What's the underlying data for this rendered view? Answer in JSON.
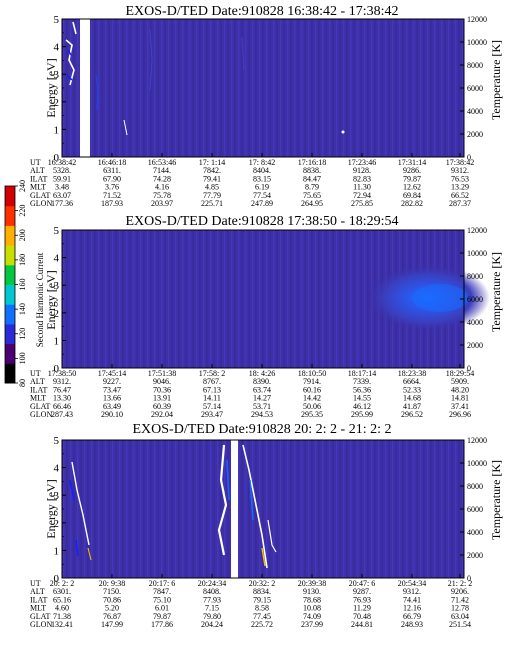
{
  "chart_data": [
    {
      "type": "heatmap",
      "title": "EXOS-D/TED   Date:910828   16:38:42 - 17:38:42",
      "ylabel": "Energy [eV]",
      "ylim": [
        0,
        5
      ],
      "yticks": [
        "0",
        "1",
        "2",
        "3",
        "4",
        "5"
      ],
      "y2label": "Temperature [K]",
      "y2lim": [
        0,
        12000
      ],
      "y2ticks": [
        "0",
        "2000",
        "4000",
        "6000",
        "8000",
        "10000",
        "12000"
      ],
      "ephemeris_rows": [
        "UT",
        "ALT",
        "ILAT",
        "MLT",
        "GLAT",
        "GLON"
      ],
      "ephemeris": [
        [
          "16:38:42",
          "16:46:18",
          "16:53:46",
          "17: 1:14",
          "17: 8:42",
          "17:16:18",
          "17:23:46",
          "17:31:14",
          "17:38:42"
        ],
        [
          "5328.",
          "6311.",
          "7144.",
          "7842.",
          "8404.",
          "8838.",
          "9128.",
          "9286.",
          "9312."
        ],
        [
          "59.91",
          "67.90",
          "74.28",
          "79.41",
          "83.15",
          "84.47",
          "82.83",
          "79.87",
          "76.53"
        ],
        [
          "3.48",
          "3.76",
          "4.16",
          "4.85",
          "6.19",
          "8.79",
          "11.30",
          "12.62",
          "13.29"
        ],
        [
          "63.07",
          "71.52",
          "75.78",
          "77.79",
          "77.54",
          "75.65",
          "72.94",
          "69.84",
          "66.52"
        ],
        [
          "177.36",
          "187.93",
          "203.97",
          "225.71",
          "247.89",
          "264.95",
          "275.85",
          "282.82",
          "287.37"
        ]
      ]
    },
    {
      "type": "heatmap",
      "title": "EXOS-D/TED   Date:910828   17:38:50 - 18:29:54",
      "ylabel": "Energy [eV]",
      "ylim": [
        0,
        5
      ],
      "yticks": [
        "0",
        "1",
        "2",
        "3",
        "4",
        "5"
      ],
      "y2label": "Temperature [K]",
      "y2lim": [
        0,
        12000
      ],
      "y2ticks": [
        "0",
        "2000",
        "4000",
        "6000",
        "8000",
        "10000",
        "12000"
      ],
      "ephemeris_rows": [
        "UT",
        "ALT",
        "ILAT",
        "MLT",
        "GLAT",
        "GLON"
      ],
      "ephemeris": [
        [
          "17:38:50",
          "17:45:14",
          "17:51:38",
          "17:58: 2",
          "18: 4:26",
          "18:10:50",
          "18:17:14",
          "18:23:38",
          "18:29:54"
        ],
        [
          "9312.",
          "9227.",
          "9046.",
          "8767.",
          "8390.",
          "7914.",
          "7339.",
          "6664.",
          "5909."
        ],
        [
          "76.47",
          "73.47",
          "70.36",
          "67.13",
          "63.74",
          "60.16",
          "56.36",
          "52.33",
          "48.20"
        ],
        [
          "13.30",
          "13.66",
          "13.91",
          "14.11",
          "14.27",
          "14.42",
          "14.55",
          "14.68",
          "14.81"
        ],
        [
          "66.46",
          "63.49",
          "60.39",
          "57.14",
          "53.71",
          "50.06",
          "46.12",
          "41.87",
          "37.41"
        ],
        [
          "287.43",
          "290.10",
          "292.04",
          "293.47",
          "294.53",
          "295.35",
          "295.99",
          "296.52",
          "296.96"
        ]
      ]
    },
    {
      "type": "heatmap",
      "title": "EXOS-D/TED   Date:910828   20: 2: 2 - 21: 2: 2",
      "ylabel": "Energy [eV]",
      "ylim": [
        0,
        5
      ],
      "yticks": [
        "0",
        "1",
        "2",
        "3",
        "4",
        "5"
      ],
      "y2label": "Temperature [K]",
      "y2lim": [
        0,
        12000
      ],
      "y2ticks": [
        "0",
        "2000",
        "4000",
        "6000",
        "8000",
        "10000",
        "12000"
      ],
      "ephemeris_rows": [
        "UT",
        "ALT",
        "ILAT",
        "MLT",
        "GLAT",
        "GLON"
      ],
      "ephemeris": [
        [
          "20: 2: 2",
          "20: 9:38",
          "20:17: 6",
          "20:24:34",
          "20:32: 2",
          "20:39:38",
          "20:47: 6",
          "20:54:34",
          "21: 2: 2"
        ],
        [
          "6301.",
          "7150.",
          "7847.",
          "8408.",
          "8834.",
          "9130.",
          "9287.",
          "9312.",
          "9206."
        ],
        [
          "65.16",
          "70.86",
          "75.10",
          "77.93",
          "79.15",
          "78.68",
          "76.93",
          "74.41",
          "71.42"
        ],
        [
          "4.60",
          "5.20",
          "6.01",
          "7.15",
          "8.58",
          "10.08",
          "11.29",
          "12.16",
          "12.78"
        ],
        [
          "71.38",
          "76.87",
          "79.87",
          "79.80",
          "77.45",
          "74.09",
          "70.48",
          "66.79",
          "63.04"
        ],
        [
          "132.41",
          "147.99",
          "177.86",
          "204.24",
          "225.72",
          "237.99",
          "244.81",
          "248.93",
          "251.54"
        ]
      ]
    }
  ],
  "colorbar": {
    "label": "Second Harmonic Current",
    "ticks": [
      "80",
      "100",
      "120",
      "140",
      "160",
      "180",
      "200",
      "220",
      "240"
    ],
    "colors": [
      "#000000",
      "#4a0070",
      "#2a2ad8",
      "#1070ff",
      "#00c8d0",
      "#00c840",
      "#c8e000",
      "#ffb000",
      "#ff3000",
      "#d00000"
    ]
  }
}
